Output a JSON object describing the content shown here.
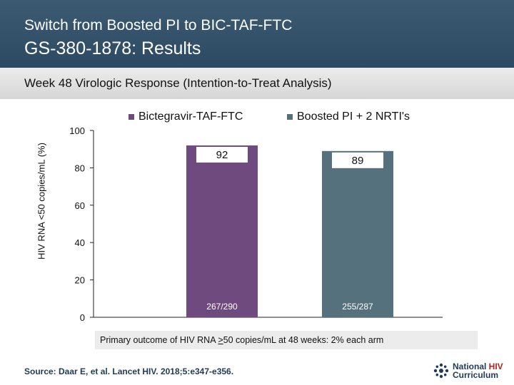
{
  "header": {
    "subtitle": "Switch from Boosted PI to BIC-TAF-FTC",
    "title": "GS-380-1878: Results"
  },
  "band": {
    "text": "Week 48 Virologic Response (Intention-to-Treat Analysis)"
  },
  "chart_data": {
    "type": "bar",
    "categories": [
      "Bictegravir-TAF-FTC",
      "Boosted PI + 2 NRTI's"
    ],
    "values": [
      92,
      89
    ],
    "bar_labels": [
      "92",
      "89"
    ],
    "fractions": [
      "267/290",
      "255/287"
    ],
    "colors": [
      "#6f4a7e",
      "#56717e"
    ],
    "legend": [
      "Bictegravir-TAF-FTC",
      "Boosted PI + 2 NRTI's"
    ],
    "legend_position": "top",
    "ylabel": "HIV RNA <50 copies/mL (%)",
    "ylim": [
      0,
      100
    ],
    "yticks": [
      "0",
      "20",
      "40",
      "60",
      "80",
      "100"
    ],
    "grid": false
  },
  "note": {
    "before": "Primary outcome of HIV RNA ",
    "underlined": ">",
    "after": "50 copies/mL at 48 weeks: 2% each arm"
  },
  "source": "Source: Daar E, et al. Lancet HIV. 2018;5:e347-e356.",
  "logo": {
    "line1": "National ",
    "line1_hiv": "HIV",
    "line2": "Curriculum"
  }
}
